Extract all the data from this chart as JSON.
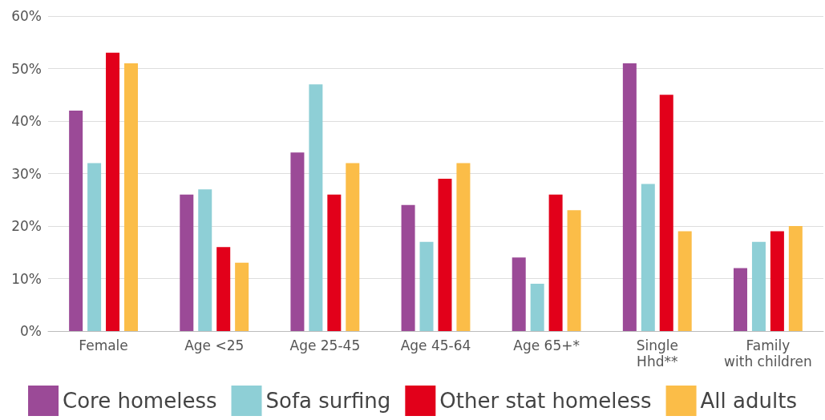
{
  "chart_data": {
    "type": "bar",
    "categories": [
      "Female",
      "Age <25",
      "Age 25-45",
      "Age 45-64",
      "Age 65+*",
      "Single\nHhd**",
      "Family\nwith children"
    ],
    "series": [
      {
        "name": "Core homeless",
        "color": "#9b4a97",
        "values": [
          42,
          26,
          34,
          24,
          14,
          51,
          12
        ]
      },
      {
        "name": "Sofa surfing",
        "color": "#8ecfd6",
        "values": [
          32,
          27,
          47,
          17,
          9,
          28,
          17
        ]
      },
      {
        "name": "Other stat homeless",
        "color": "#e2001a",
        "values": [
          53,
          16,
          26,
          29,
          26,
          45,
          19
        ]
      },
      {
        "name": "All adults",
        "color": "#fbbd48",
        "values": [
          51,
          13,
          32,
          32,
          23,
          19,
          20
        ]
      }
    ],
    "ylim": [
      0,
      60
    ],
    "yticks": [
      {
        "value": 0,
        "label": "0%"
      },
      {
        "value": 10,
        "label": "10%"
      },
      {
        "value": 20,
        "label": "20%"
      },
      {
        "value": 30,
        "label": "30%"
      },
      {
        "value": 40,
        "label": "40%"
      },
      {
        "value": 50,
        "label": "50%"
      },
      {
        "value": 60,
        "label": "60%"
      }
    ],
    "grid": "y",
    "legend": "bottom"
  }
}
